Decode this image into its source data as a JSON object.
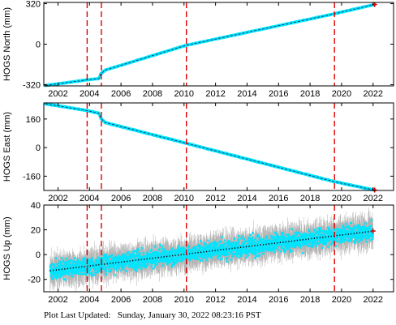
{
  "footer": {
    "label": "Plot Last Updated:",
    "timestamp": "Sunday, January 30, 2022 08:23:16 PST"
  },
  "colors": {
    "data": "#00e5ff",
    "error_bars": "#b0b0b0",
    "trend": "#000000",
    "events": "#e00000",
    "latest": "#e00000"
  },
  "chart_data": [
    {
      "type": "scatter",
      "ylabel": "HOGS North (mm)",
      "xlim": [
        2001.1,
        2023.3
      ],
      "ylim": [
        -330,
        330
      ],
      "x_ticks": [
        "2002",
        "2004",
        "2006",
        "2008",
        "2010",
        "2012",
        "2014",
        "2016",
        "2018",
        "2020",
        "2022"
      ],
      "y_ticks": [
        "-320",
        "0",
        "320"
      ],
      "grid": false,
      "events": [
        2003.85,
        2004.75,
        2010.15,
        2019.55
      ],
      "series": [
        {
          "x": [
            2001.2,
            2003.8,
            2004.6,
            2004.7,
            2005.0,
            2010.1,
            2019.5,
            2022.1
          ],
          "values": [
            -327,
            -283,
            -272,
            -236,
            -205,
            -10,
            239,
            314
          ]
        }
      ]
    },
    {
      "type": "scatter",
      "ylabel": "HOGS East (mm)",
      "xlim": [
        2001.1,
        2023.3
      ],
      "ylim": [
        -240,
        250
      ],
      "x_ticks": [
        "2002",
        "2004",
        "2006",
        "2008",
        "2010",
        "2012",
        "2014",
        "2016",
        "2018",
        "2020",
        "2022"
      ],
      "y_ticks": [
        "-160",
        "0",
        "160"
      ],
      "grid": false,
      "events": [
        2003.85,
        2004.75,
        2010.15,
        2019.55
      ],
      "series": [
        {
          "x": [
            2001.2,
            2003.8,
            2004.6,
            2004.7,
            2005.0,
            2010.1,
            2019.5,
            2022.1
          ],
          "values": [
            245,
            208,
            192,
            165,
            140,
            25,
            -190,
            -238
          ]
        }
      ]
    },
    {
      "type": "scatter",
      "ylabel": "HOGS Up (mm)",
      "xlim": [
        2001.1,
        2023.3
      ],
      "ylim": [
        -30,
        40
      ],
      "x_ticks": [
        "2002",
        "2004",
        "2006",
        "2008",
        "2010",
        "2012",
        "2014",
        "2016",
        "2018",
        "2020",
        "2022"
      ],
      "y_ticks": [
        "-20",
        "0",
        "20",
        "40"
      ],
      "grid": false,
      "events": [
        2003.85,
        2004.75,
        2010.15,
        2019.55
      ],
      "trend": {
        "x": [
          2001.5,
          2022.0
        ],
        "values": [
          -13,
          19
        ]
      },
      "series": [
        {
          "x": [
            2001.5,
            2022.0
          ],
          "values": [
            -13,
            19
          ]
        }
      ]
    }
  ]
}
